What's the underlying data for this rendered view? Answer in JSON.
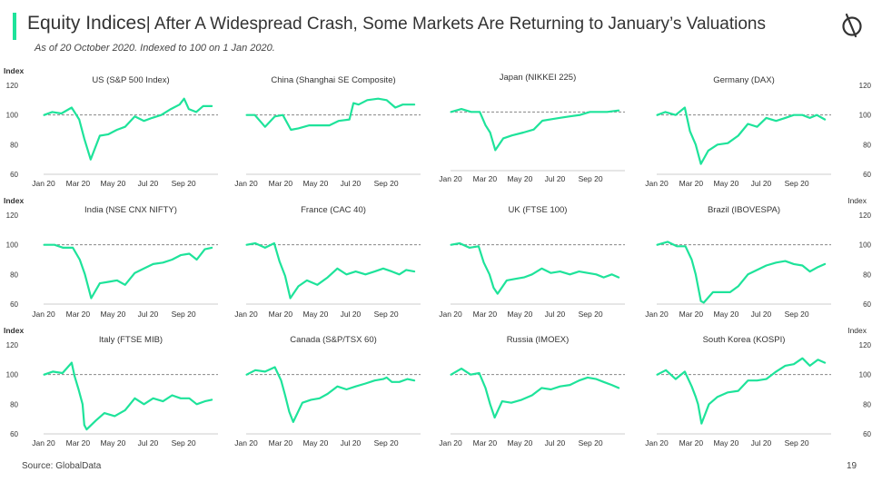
{
  "header": {
    "title_main": "Equity Indices",
    "title_sep": "| ",
    "title_rest": "After A Widespread Crash, Some Markets Are Returning to January’s Valuations",
    "subtitle": "As of 20 October 2020. Indexed to 100 on 1 Jan 2020."
  },
  "footer": {
    "source": "Source: GlobalData",
    "page": "19"
  },
  "colors": {
    "accent": "#1ee39a",
    "line": "#1ee39a",
    "reference": "#888888"
  },
  "chart_data": [
    {
      "type": "line",
      "title": "US (S&P 500 Index)",
      "ylabel": "Index",
      "ylim": [
        60,
        120
      ],
      "yticks": [
        60,
        80,
        100,
        120
      ],
      "reference": 100,
      "xticks": [
        "Jan 20",
        "Mar 20",
        "May 20",
        "Jul 20",
        "Sep 20"
      ],
      "series": [
        {
          "x": [
            "Jan 02",
            "Jan 16",
            "Feb 01",
            "Feb 19",
            "Mar 03",
            "Mar 12",
            "Mar 23",
            "Apr 08",
            "Apr 23",
            "May 08",
            "May 22",
            "Jun 08",
            "Jun 24",
            "Jul 08",
            "Jul 24",
            "Aug 10",
            "Aug 25",
            "Sep 02",
            "Sep 10",
            "Sep 23",
            "Oct 05",
            "Oct 20"
          ],
          "values": [
            100,
            102,
            101,
            105,
            97,
            84,
            70,
            86,
            87,
            90,
            92,
            99,
            96,
            98,
            100,
            104,
            107,
            111,
            104,
            102,
            106,
            106
          ]
        }
      ]
    },
    {
      "type": "line",
      "title": "China (Shanghai SE Composite)",
      "ylabel": "",
      "ylim": [
        60,
        120
      ],
      "yticks": [],
      "reference": 100,
      "xticks": [
        "Jan 20",
        "Mar 20",
        "May 20",
        "Jul 20",
        "Sep 20"
      ],
      "series": [
        {
          "x": [
            "Jan 02",
            "Jan 16",
            "Feb 03",
            "Feb 20",
            "Mar 05",
            "Mar 19",
            "Apr 01",
            "Apr 20",
            "May 07",
            "May 25",
            "Jun 10",
            "Jun 29",
            "Jul 06",
            "Jul 15",
            "Jul 30",
            "Aug 18",
            "Sep 02",
            "Sep 17",
            "Sep 30",
            "Oct 20"
          ],
          "values": [
            100,
            100,
            92,
            99,
            100,
            90,
            91,
            93,
            93,
            93,
            96,
            97,
            108,
            107,
            110,
            111,
            110,
            105,
            107,
            107
          ]
        }
      ]
    },
    {
      "type": "line",
      "title": "Japan (NIKKEI 225)",
      "ylabel": "",
      "ylim": [
        60,
        120
      ],
      "yticks": [],
      "reference": 100,
      "xticks": [
        "Jan 20",
        "Mar 20",
        "May 20",
        "Jul 20",
        "Sep 20"
      ],
      "series": [
        {
          "x": [
            "Jan 02",
            "Jan 20",
            "Feb 06",
            "Feb 21",
            "Mar 02",
            "Mar 10",
            "Mar 19",
            "Apr 02",
            "Apr 17",
            "May 07",
            "May 25",
            "Jun 09",
            "Jun 24",
            "Jul 10",
            "Jul 27",
            "Aug 14",
            "Aug 31",
            "Sep 16",
            "Sep 30",
            "Oct 20"
          ],
          "values": [
            100,
            102,
            100,
            100,
            91,
            86,
            74,
            82,
            84,
            86,
            88,
            94,
            95,
            96,
            97,
            98,
            100,
            100,
            100,
            101
          ]
        }
      ]
    },
    {
      "type": "line",
      "title": "Germany (DAX)",
      "ylabel": "",
      "ylim": [
        60,
        120
      ],
      "yticks": [
        60,
        80,
        100,
        120
      ],
      "reference": 100,
      "xticks": [
        "Jan 20",
        "Mar 20",
        "May 20",
        "Jul 20",
        "Sep 20"
      ],
      "series": [
        {
          "x": [
            "Jan 02",
            "Jan 16",
            "Feb 03",
            "Feb 19",
            "Feb 28",
            "Mar 09",
            "Mar 18",
            "Mar 31",
            "Apr 16",
            "May 04",
            "May 22",
            "Jun 08",
            "Jun 24",
            "Jul 10",
            "Jul 27",
            "Aug 12",
            "Aug 27",
            "Sep 11",
            "Sep 24",
            "Oct 06",
            "Oct 20"
          ],
          "values": [
            100,
            102,
            100,
            105,
            89,
            80,
            67,
            76,
            80,
            81,
            86,
            94,
            92,
            98,
            96,
            98,
            100,
            100,
            98,
            100,
            97
          ]
        }
      ]
    },
    {
      "type": "line",
      "title": "India (NSE CNX NIFTY)",
      "ylabel": "Index",
      "ylim": [
        60,
        120
      ],
      "yticks": [
        60,
        80,
        100,
        120
      ],
      "reference": 100,
      "xticks": [
        "Jan 20",
        "Mar 20",
        "May 20",
        "Jul 20",
        "Sep 20"
      ],
      "series": [
        {
          "x": [
            "Jan 02",
            "Jan 20",
            "Feb 04",
            "Feb 21",
            "Mar 04",
            "Mar 13",
            "Mar 24",
            "Apr 08",
            "Apr 23",
            "May 08",
            "May 22",
            "Jun 08",
            "Jun 24",
            "Jul 10",
            "Jul 27",
            "Aug 12",
            "Aug 27",
            "Sep 11",
            "Sep 24",
            "Oct 08",
            "Oct 20"
          ],
          "values": [
            100,
            100,
            98,
            98,
            90,
            80,
            64,
            74,
            75,
            76,
            73,
            81,
            84,
            87,
            88,
            90,
            93,
            94,
            90,
            97,
            98
          ]
        }
      ]
    },
    {
      "type": "line",
      "title": "France (CAC 40)",
      "ylabel": "",
      "ylim": [
        60,
        120
      ],
      "yticks": [],
      "reference": 100,
      "xticks": [
        "Jan 20",
        "Mar 20",
        "May 20",
        "Jul 20",
        "Sep 20"
      ],
      "series": [
        {
          "x": [
            "Jan 02",
            "Jan 17",
            "Feb 03",
            "Feb 19",
            "Feb 28",
            "Mar 09",
            "Mar 18",
            "Apr 01",
            "Apr 16",
            "May 04",
            "May 22",
            "Jun 08",
            "Jun 24",
            "Jul 10",
            "Jul 27",
            "Aug 12",
            "Aug 27",
            "Sep 11",
            "Sep 24",
            "Oct 06",
            "Oct 20"
          ],
          "values": [
            100,
            101,
            98,
            101,
            89,
            79,
            64,
            72,
            76,
            73,
            78,
            84,
            80,
            82,
            80,
            82,
            84,
            82,
            80,
            83,
            82
          ]
        }
      ]
    },
    {
      "type": "line",
      "title": "UK (FTSE 100)",
      "ylabel": "",
      "ylim": [
        60,
        120
      ],
      "yticks": [],
      "reference": 100,
      "xticks": [
        "Jan 20",
        "Mar 20",
        "May 20",
        "Jul 20",
        "Sep 20"
      ],
      "series": [
        {
          "x": [
            "Jan 02",
            "Jan 17",
            "Feb 03",
            "Feb 19",
            "Feb 28",
            "Mar 09",
            "Mar 16",
            "Mar 23",
            "Apr 08",
            "Apr 23",
            "May 08",
            "May 22",
            "Jun 08",
            "Jun 24",
            "Jul 10",
            "Jul 27",
            "Aug 12",
            "Aug 27",
            "Sep 11",
            "Sep 24",
            "Oct 08",
            "Oct 20"
          ],
          "values": [
            100,
            101,
            98,
            99,
            88,
            80,
            71,
            67,
            76,
            77,
            78,
            80,
            84,
            81,
            82,
            80,
            82,
            81,
            80,
            78,
            80,
            78
          ]
        }
      ]
    },
    {
      "type": "line",
      "title": "Brazil (IBOVESPA)",
      "ylabel": "Index",
      "ylim": [
        60,
        120
      ],
      "yticks": [
        60,
        80,
        100,
        120
      ],
      "reference": 100,
      "xticks": [
        "Jan 20",
        "Mar 20",
        "May 20",
        "Jul 20",
        "Sep 20"
      ],
      "series": [
        {
          "x": [
            "Jan 02",
            "Jan 20",
            "Feb 05",
            "Feb 20",
            "Mar 02",
            "Mar 09",
            "Mar 18",
            "Mar 23",
            "Apr 08",
            "Apr 23",
            "May 08",
            "May 22",
            "Jun 08",
            "Jun 24",
            "Jul 10",
            "Jul 27",
            "Aug 12",
            "Aug 27",
            "Sep 11",
            "Sep 24",
            "Oct 08",
            "Oct 20"
          ],
          "values": [
            100,
            102,
            99,
            99,
            90,
            80,
            62,
            61,
            68,
            68,
            68,
            72,
            80,
            83,
            86,
            88,
            89,
            87,
            86,
            82,
            85,
            87
          ]
        }
      ]
    },
    {
      "type": "line",
      "title": "Italy (FTSE MIB)",
      "ylabel": "Index",
      "ylim": [
        60,
        120
      ],
      "yticks": [
        60,
        80,
        100,
        120
      ],
      "reference": 100,
      "xticks": [
        "Jan 20",
        "Mar 20",
        "May 20",
        "Jul 20",
        "Sep 20"
      ],
      "series": [
        {
          "x": [
            "Jan 02",
            "Jan 17",
            "Feb 03",
            "Feb 19",
            "Feb 24",
            "Mar 02",
            "Mar 09",
            "Mar 12",
            "Mar 16",
            "Apr 01",
            "Apr 16",
            "May 04",
            "May 22",
            "Jun 08",
            "Jun 24",
            "Jul 10",
            "Jul 27",
            "Aug 12",
            "Aug 27",
            "Sep 11",
            "Sep 24",
            "Oct 08",
            "Oct 20"
          ],
          "values": [
            100,
            102,
            101,
            108,
            99,
            90,
            80,
            66,
            63,
            69,
            74,
            72,
            76,
            84,
            80,
            84,
            82,
            86,
            84,
            84,
            80,
            82,
            83
          ]
        }
      ]
    },
    {
      "type": "line",
      "title": "Canada (S&P/TSX 60)",
      "ylabel": "",
      "ylim": [
        60,
        120
      ],
      "yticks": [],
      "reference": 100,
      "xticks": [
        "Jan 20",
        "Mar 20",
        "May 20",
        "Jul 20",
        "Sep 20"
      ],
      "series": [
        {
          "x": [
            "Jan 02",
            "Jan 17",
            "Feb 03",
            "Feb 20",
            "Mar 02",
            "Mar 09",
            "Mar 16",
            "Mar 23",
            "Apr 08",
            "Apr 23",
            "May 08",
            "May 22",
            "Jun 08",
            "Jun 24",
            "Jul 10",
            "Jul 27",
            "Aug 12",
            "Aug 27",
            "Sep 02",
            "Sep 11",
            "Sep 24",
            "Oct 08",
            "Oct 20"
          ],
          "values": [
            100,
            103,
            102,
            105,
            96,
            86,
            75,
            68,
            81,
            83,
            84,
            87,
            92,
            90,
            92,
            94,
            96,
            97,
            98,
            95,
            95,
            97,
            96
          ]
        }
      ]
    },
    {
      "type": "line",
      "title": "Russia (IMOEX)",
      "ylabel": "",
      "ylim": [
        60,
        120
      ],
      "yticks": [],
      "reference": 100,
      "xticks": [
        "Jan 20",
        "Mar 20",
        "May 20",
        "Jul 20",
        "Sep 20"
      ],
      "series": [
        {
          "x": [
            "Jan 02",
            "Jan 20",
            "Feb 05",
            "Feb 20",
            "Mar 02",
            "Mar 10",
            "Mar 18",
            "Mar 31",
            "Apr 16",
            "May 04",
            "May 22",
            "Jun 08",
            "Jun 24",
            "Jul 10",
            "Jul 27",
            "Aug 12",
            "Aug 27",
            "Sep 11",
            "Sep 24",
            "Oct 08",
            "Oct 20"
          ],
          "values": [
            100,
            104,
            100,
            101,
            91,
            80,
            71,
            82,
            81,
            83,
            86,
            91,
            90,
            92,
            93,
            96,
            98,
            97,
            95,
            93,
            91
          ]
        }
      ]
    },
    {
      "type": "line",
      "title": "South Korea (KOSPI)",
      "ylabel": "Index",
      "ylim": [
        60,
        120
      ],
      "yticks": [
        60,
        80,
        100,
        120
      ],
      "reference": 100,
      "xticks": [
        "Jan 20",
        "Mar 20",
        "May 20",
        "Jul 20",
        "Sep 20"
      ],
      "series": [
        {
          "x": [
            "Jan 02",
            "Jan 17",
            "Feb 03",
            "Feb 19",
            "Mar 02",
            "Mar 09",
            "Mar 13",
            "Mar 19",
            "Apr 01",
            "Apr 16",
            "May 04",
            "May 22",
            "Jun 08",
            "Jun 24",
            "Jul 10",
            "Jul 27",
            "Aug 12",
            "Aug 27",
            "Sep 11",
            "Sep 24",
            "Oct 08",
            "Oct 20"
          ],
          "values": [
            100,
            103,
            97,
            102,
            92,
            85,
            80,
            67,
            80,
            85,
            88,
            89,
            96,
            96,
            97,
            102,
            106,
            107,
            111,
            106,
            110,
            108
          ]
        }
      ]
    }
  ]
}
